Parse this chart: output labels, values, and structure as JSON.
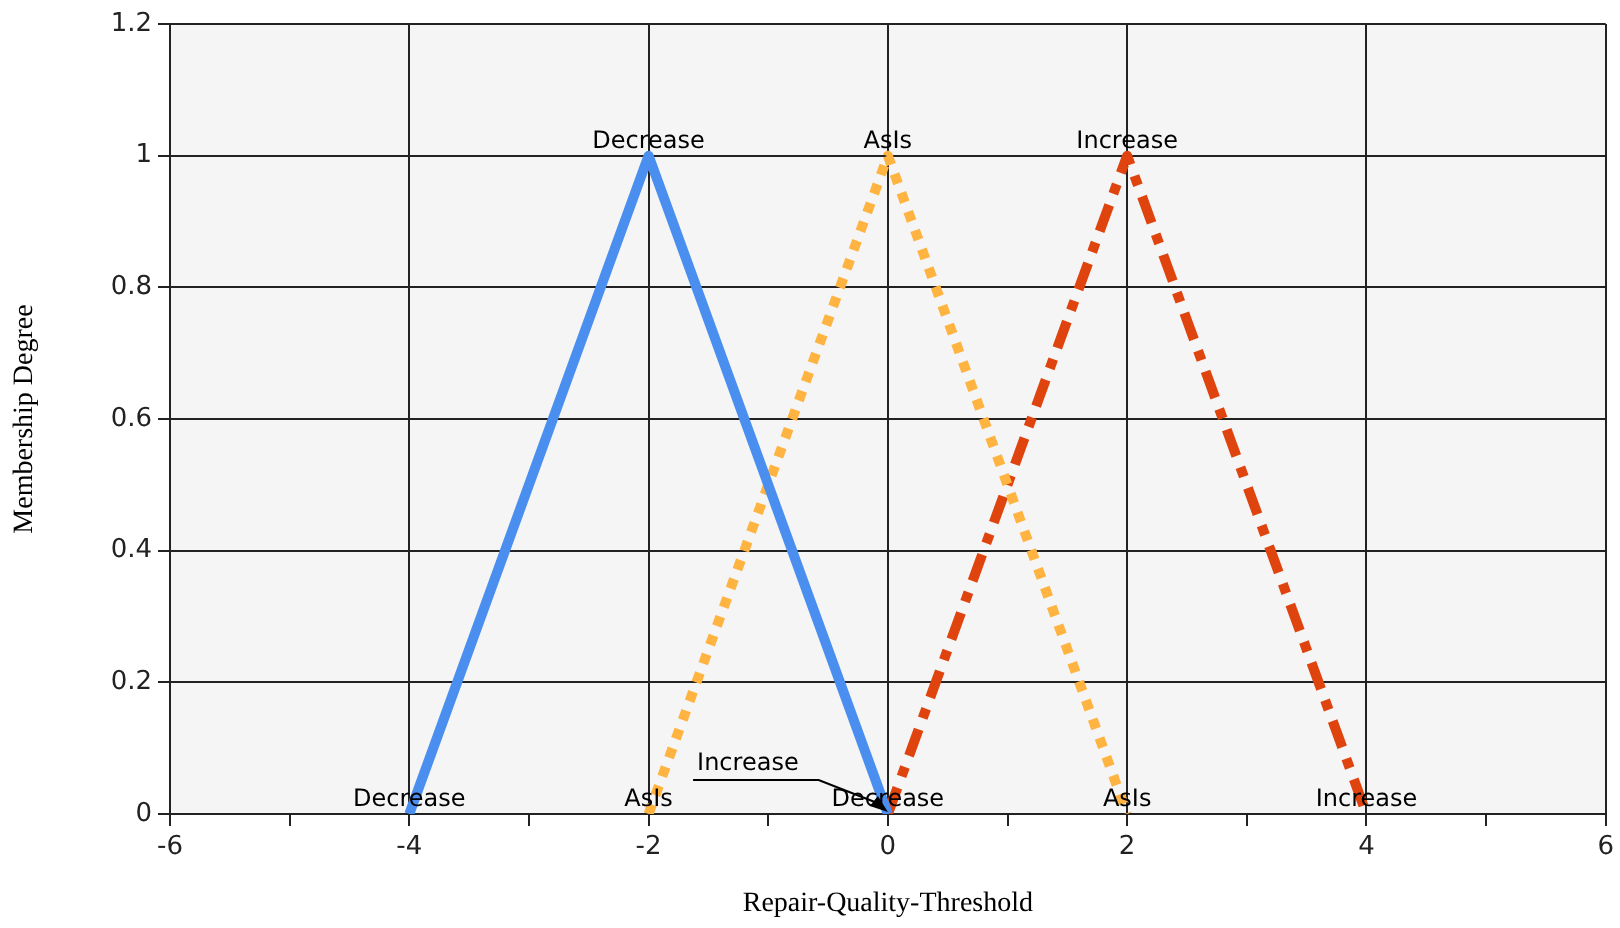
{
  "chart_data": {
    "type": "line",
    "xlabel": "Repair-Quality-Threshold",
    "ylabel": "Membership Degree",
    "xlim": [
      -6,
      6
    ],
    "xticks": [
      -6,
      {
        "value": -5,
        "label": null
      },
      -4,
      {
        "value": -3,
        "label": null
      },
      -2,
      {
        "value": -1,
        "label": null
      },
      0,
      {
        "value": 1,
        "label": null
      },
      2,
      {
        "value": 3,
        "label": null
      },
      4,
      {
        "value": 5,
        "label": null
      },
      6
    ],
    "ylim": [
      0,
      1.2
    ],
    "yticks": [
      0,
      0.2,
      0.4,
      0.6,
      0.8,
      1,
      1.2
    ],
    "grid": true,
    "legend": false,
    "marker": "none",
    "series": [
      {
        "name": "Decrease",
        "color": "#4a8ff0",
        "line_style": "solid",
        "x": [
          -4,
          -2,
          0
        ],
        "values": [
          0,
          1,
          0
        ]
      },
      {
        "name": "AsIs",
        "color": "#ffb340",
        "line_style": "dotted",
        "x": [
          -2,
          0,
          2
        ],
        "values": [
          0,
          1,
          0
        ]
      },
      {
        "name": "Increase",
        "color": "#e0440e",
        "line_style": "dashed",
        "x": [
          0,
          2,
          4
        ],
        "values": [
          0,
          1,
          0
        ]
      }
    ]
  }
}
